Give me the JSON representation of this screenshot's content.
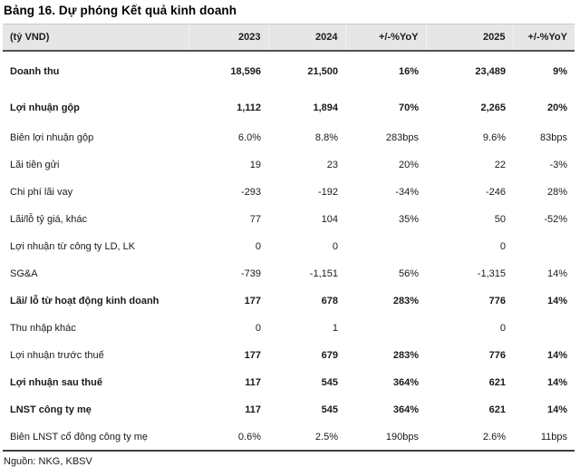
{
  "chart_data": {
    "type": "table",
    "title": "Bảng 16. Dự phóng Kết quả kinh doanh",
    "unit_label": "(tỷ VND)",
    "columns": [
      "2023",
      "2024",
      "+/-%YoY",
      "2025",
      "+/-%YoY"
    ],
    "rows": [
      {
        "label": "Doanh thu",
        "values": [
          "18,596",
          "21,500",
          "16%",
          "23,489",
          "9%"
        ],
        "bold_label": true,
        "bold_values": true
      },
      {
        "label": "Lợi nhuận gộp",
        "values": [
          "1,112",
          "1,894",
          "70%",
          "2,265",
          "20%"
        ],
        "bold_label": true,
        "bold_values": true
      },
      {
        "label": "Biên lợi nhuận gộp",
        "values": [
          "6.0%",
          "8.8%",
          "283bps",
          "9.6%",
          "83bps"
        ],
        "bold_label": false,
        "bold_values": false
      },
      {
        "label": "Lãi tiền gửi",
        "values": [
          "19",
          "23",
          "20%",
          "22",
          "-3%"
        ],
        "bold_label": false,
        "bold_values": false
      },
      {
        "label": "Chi phí lãi vay",
        "values": [
          "-293",
          "-192",
          "-34%",
          "-246",
          "28%"
        ],
        "bold_label": false,
        "bold_values": false
      },
      {
        "label": "Lãi/lỗ tỷ giá, khác",
        "values": [
          "77",
          "104",
          "35%",
          "50",
          "-52%"
        ],
        "bold_label": false,
        "bold_values": false
      },
      {
        "label": "Lợi nhuận từ công ty LD, LK",
        "values": [
          "0",
          "0",
          "",
          "0",
          ""
        ],
        "bold_label": false,
        "bold_values": false
      },
      {
        "label": "SG&A",
        "values": [
          "-739",
          "-1,151",
          "56%",
          "-1,315",
          "14%"
        ],
        "bold_label": false,
        "bold_values": false
      },
      {
        "label": "Lãi/ lỗ từ hoạt động kinh doanh",
        "values": [
          "177",
          "678",
          "283%",
          "776",
          "14%"
        ],
        "bold_label": true,
        "bold_values": true
      },
      {
        "label": "Thu nhập khác",
        "values": [
          "0",
          "1",
          "",
          "0",
          ""
        ],
        "bold_label": false,
        "bold_values": false
      },
      {
        "label": "Lợi nhuận trước thuế",
        "values": [
          "177",
          "679",
          "283%",
          "776",
          "14%"
        ],
        "bold_label": false,
        "bold_values": true
      },
      {
        "label": "Lợi nhuận sau thuế",
        "values": [
          "117",
          "545",
          "364%",
          "621",
          "14%"
        ],
        "bold_label": true,
        "bold_values": true
      },
      {
        "label": "LNST công ty mẹ",
        "values": [
          "117",
          "545",
          "364%",
          "621",
          "14%"
        ],
        "bold_label": true,
        "bold_values": true
      },
      {
        "label": "Biên LNST cổ đông công ty mẹ",
        "values": [
          "0.6%",
          "2.5%",
          "190bps",
          "2.6%",
          "11bps"
        ],
        "bold_label": false,
        "bold_values": false
      }
    ],
    "source": "Nguồn: NKG, KBSV"
  },
  "colors": {
    "header_bg": "#e6e6e6",
    "header_border_top": "#c9c9c9",
    "header_border_bottom": "#505050",
    "table_border_bottom": "#3f3f3f",
    "text": "#1a1a1a"
  }
}
